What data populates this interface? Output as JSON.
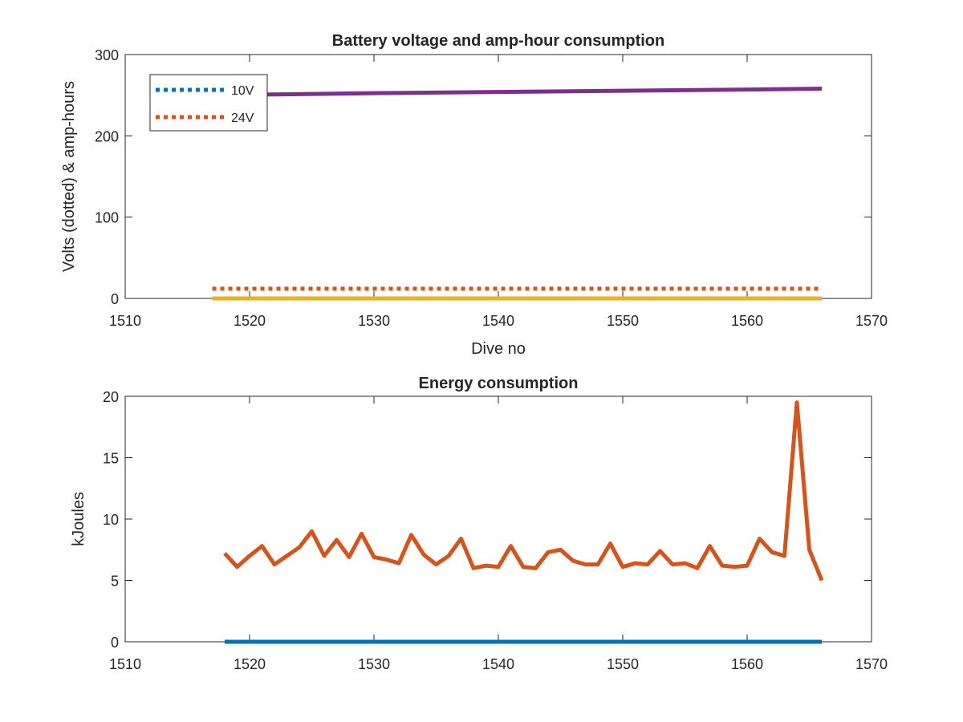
{
  "chart_data": [
    {
      "type": "line",
      "title": "Battery voltage and amp-hour consumption",
      "xlabel": "Dive no",
      "ylabel": "Volts (dotted) & amp-hours",
      "xlim": [
        1510,
        1570
      ],
      "ylim": [
        0,
        300
      ],
      "xticks": [
        "1510",
        "1520",
        "1530",
        "1540",
        "1550",
        "1560",
        "1570"
      ],
      "yticks": [
        "0",
        "100",
        "200",
        "300"
      ],
      "grid": false,
      "legend": {
        "placement": "top-left",
        "entries": [
          "10V",
          "24V"
        ]
      },
      "series": [
        {
          "name": "10V",
          "style": "dotted",
          "color": "#0072BD",
          "x": [
            1517,
            1566
          ],
          "y": [
            0,
            0
          ]
        },
        {
          "name": "24V",
          "style": "dotted",
          "color": "#D95319",
          "x": [
            1517,
            1566
          ],
          "y": [
            12,
            12
          ]
        },
        {
          "style": "solid",
          "color": "#EDB120",
          "x": [
            1517,
            1566
          ],
          "y": [
            0,
            0
          ]
        },
        {
          "style": "solid",
          "color": "#7E2F8E",
          "x": [
            1517,
            1530,
            1540,
            1550,
            1560,
            1566
          ],
          "y": [
            250,
            252.5,
            254,
            255.5,
            257,
            258
          ]
        }
      ]
    },
    {
      "type": "line",
      "title": "Energy consumption",
      "xlabel": "",
      "ylabel": "kJoules",
      "xlim": [
        1510,
        1570
      ],
      "ylim": [
        0,
        20
      ],
      "xticks": [
        "1510",
        "1520",
        "1530",
        "1540",
        "1550",
        "1560",
        "1570"
      ],
      "yticks": [
        "0",
        "5",
        "10",
        "15",
        "20"
      ],
      "grid": false,
      "series": [
        {
          "style": "solid",
          "color": "#0072BD",
          "x": [
            1518,
            1566
          ],
          "y": [
            0,
            0
          ]
        },
        {
          "style": "solid",
          "color": "#D95319",
          "x": [
            1518,
            1519,
            1520,
            1521,
            1522,
            1523,
            1524,
            1525,
            1526,
            1527,
            1528,
            1529,
            1530,
            1531,
            1532,
            1533,
            1534,
            1535,
            1536,
            1537,
            1538,
            1539,
            1540,
            1541,
            1542,
            1543,
            1544,
            1545,
            1546,
            1547,
            1548,
            1549,
            1550,
            1551,
            1552,
            1553,
            1554,
            1555,
            1556,
            1557,
            1558,
            1559,
            1560,
            1561,
            1562,
            1563,
            1564,
            1565,
            1566
          ],
          "y": [
            7.2,
            6.1,
            7.0,
            7.8,
            6.3,
            7.0,
            7.7,
            9.0,
            7.0,
            8.3,
            6.9,
            8.8,
            6.9,
            6.7,
            6.4,
            8.7,
            7.1,
            6.3,
            7.0,
            8.4,
            6.0,
            6.2,
            6.1,
            7.8,
            6.1,
            6.0,
            7.3,
            7.5,
            6.6,
            6.3,
            6.3,
            8.0,
            6.1,
            6.4,
            6.3,
            7.4,
            6.3,
            6.4,
            6.0,
            7.8,
            6.2,
            6.1,
            6.2,
            8.4,
            7.3,
            7.0,
            19.5,
            7.5,
            5.0
          ]
        }
      ]
    }
  ]
}
